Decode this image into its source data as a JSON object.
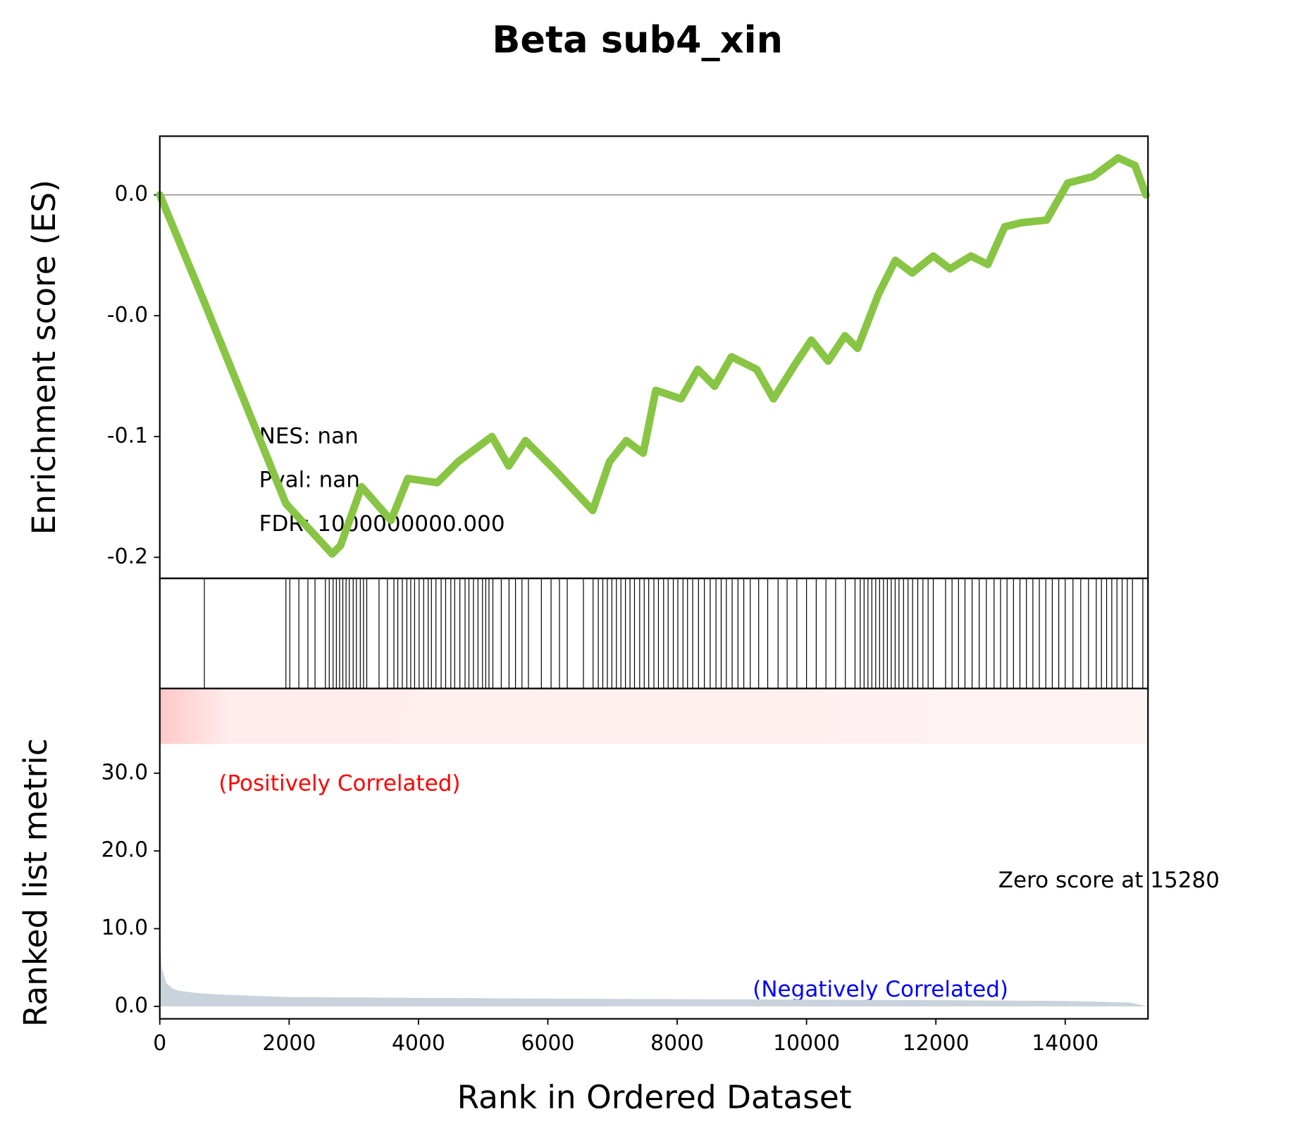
{
  "chart_data": [
    {
      "type": "line",
      "title": "Beta sub4_xin",
      "ylabel": "Enrichment score (ES)",
      "color": "#88c544",
      "annotations": [
        "NES: nan",
        "Pval: nan",
        "FDR: 1000000000.000"
      ],
      "xlim": [
        0,
        15280
      ],
      "ylim": [
        -0.1587,
        0.0243
      ],
      "yticks": [
        {
          "value": 0,
          "label": "0.0"
        },
        {
          "value": -0.05,
          "label": "-0.0"
        },
        {
          "value": -0.1,
          "label": "-0.1"
        },
        {
          "value": -0.15,
          "label": "-0.2"
        }
      ],
      "x": [
        0,
        689,
        1950,
        2665,
        2795,
        3120,
        3575,
        3835,
        4290,
        4615,
        5135,
        5395,
        5655,
        6110,
        6694,
        6954,
        7214,
        7474,
        7669,
        8059,
        8319,
        8579,
        8839,
        9229,
        9489,
        9814,
        10074,
        10334,
        10594,
        10789,
        11114,
        11374,
        11634,
        11959,
        12219,
        12544,
        12804,
        13064,
        13324,
        13714,
        14039,
        14429,
        14819,
        15079,
        15248
      ],
      "values": [
        0,
        -0.0444,
        -0.1278,
        -0.1486,
        -0.1451,
        -0.1208,
        -0.1347,
        -0.1174,
        -0.1191,
        -0.1104,
        -0.1,
        -0.1122,
        -0.1017,
        -0.1139,
        -0.1306,
        -0.1104,
        -0.1017,
        -0.1069,
        -0.0809,
        -0.0844,
        -0.0722,
        -0.0792,
        -0.067,
        -0.0722,
        -0.0844,
        -0.0705,
        -0.0601,
        -0.0688,
        -0.0583,
        -0.0635,
        -0.041,
        -0.0271,
        -0.0323,
        -0.0253,
        -0.0306,
        -0.0253,
        -0.0288,
        -0.0132,
        -0.0115,
        -0.0104,
        0.0049,
        0.0076,
        0.0153,
        0.0122,
        0
      ]
    },
    {
      "type": "rug",
      "xlim": [
        0,
        15280
      ],
      "x": [
        689,
        1950,
        2010,
        2150,
        2290,
        2400,
        2560,
        2620,
        2680,
        2730,
        2780,
        2830,
        2880,
        2930,
        2990,
        3040,
        3100,
        3150,
        3200,
        3390,
        3520,
        3620,
        3680,
        3750,
        3820,
        3880,
        3940,
        4010,
        4080,
        4150,
        4200,
        4270,
        4350,
        4420,
        4500,
        4560,
        4640,
        4720,
        4780,
        4850,
        4920,
        4990,
        5040,
        5090,
        5150,
        5280,
        5400,
        5500,
        5600,
        5700,
        5900,
        6050,
        6180,
        6300,
        6550,
        6700,
        6780,
        6850,
        6920,
        6990,
        7060,
        7130,
        7200,
        7270,
        7340,
        7420,
        7490,
        7560,
        7640,
        7710,
        7790,
        7860,
        7940,
        8010,
        8090,
        8160,
        8240,
        8330,
        8420,
        8510,
        8600,
        8680,
        8760,
        8850,
        8940,
        9030,
        9130,
        9260,
        9400,
        9560,
        9700,
        9850,
        10000,
        10150,
        10300,
        10450,
        10600,
        10750,
        10830,
        10890,
        10950,
        11010,
        11070,
        11130,
        11190,
        11250,
        11310,
        11370,
        11430,
        11500,
        11570,
        11640,
        11720,
        11800,
        11880,
        11960,
        12150,
        12250,
        12350,
        12450,
        12560,
        12670,
        12780,
        12900,
        13000,
        13100,
        13200,
        13300,
        13400,
        13500,
        13600,
        13700,
        13800,
        13900,
        14000,
        14120,
        14240,
        14360,
        14480,
        14560,
        14640,
        14720,
        14800,
        14880,
        14960,
        15040,
        15200
      ]
    },
    {
      "type": "area",
      "ylabel": "Ranked list metric",
      "xlabel": "Rank in Ordered Dataset",
      "color": "#c9d3dc",
      "positive_label": "(Positively Correlated)",
      "negative_label": "(Negatively Correlated)",
      "zero_label": "Zero score at 15280",
      "xlim": [
        0,
        15280
      ],
      "ylim": [
        -1.6,
        40.9
      ],
      "xticks": [
        0,
        2000,
        4000,
        6000,
        8000,
        10000,
        12000,
        14000
      ],
      "yticks": [
        {
          "value": 0,
          "label": "0.0"
        },
        {
          "value": 10,
          "label": "10.0"
        },
        {
          "value": 20,
          "label": "20.0"
        },
        {
          "value": 30,
          "label": "30.0"
        }
      ],
      "x": [
        0,
        30,
        100,
        200,
        300,
        600,
        1000,
        2000,
        4000,
        6000,
        9000,
        12000,
        14000,
        15000,
        15280
      ],
      "values": [
        9,
        5,
        3,
        2.3,
        2,
        1.7,
        1.5,
        1.2,
        1.1,
        1,
        0.9,
        0.8,
        0.7,
        0.5,
        0
      ]
    }
  ]
}
